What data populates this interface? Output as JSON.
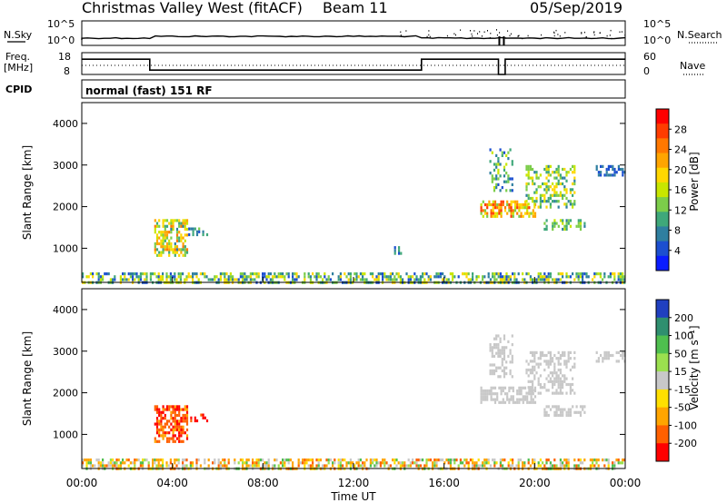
{
  "header": {
    "title": "Christmas Valley West (fitACF)",
    "beam": "Beam 11",
    "date": "05/Sep/2019"
  },
  "noise_panel": {
    "left_label": "N.Sky",
    "left_ticks": [
      "10^5",
      "10^0"
    ],
    "right_label": "N.Search",
    "right_ticks": [
      "10^5",
      "10^0"
    ]
  },
  "freq_panel": {
    "label_line1": "Freq.",
    "label_line2": "[MHz]",
    "left_ticks": [
      "18",
      "8"
    ],
    "right_label": "Nave",
    "right_ticks": [
      "60",
      "0"
    ]
  },
  "cpid": {
    "label": "CPID",
    "value": "normal (fast) 151 RF"
  },
  "power_panel": {
    "ylabel": "Slant Range [km]",
    "yticks": [
      "4000",
      "3000",
      "2000",
      "1000"
    ],
    "colorbar_label": "Power [dB]",
    "colorbar_ticks": [
      "28",
      "24",
      "20",
      "16",
      "12",
      "8",
      "4"
    ],
    "colorbar_colors": [
      "#ff0000",
      "#ff3c00",
      "#ff7800",
      "#ffa500",
      "#ffd700",
      "#c8e600",
      "#7ccd4a",
      "#3fa87a",
      "#2f7fa0",
      "#1c4fd0",
      "#0a1cff"
    ]
  },
  "velocity_panel": {
    "ylabel": "Slant Range [km]",
    "yticks": [
      "4000",
      "3000",
      "2000",
      "1000"
    ],
    "colorbar_label": "Velocity [m s⁻¹]",
    "colorbar_ticks": [
      "200",
      "100",
      "50",
      "15",
      "-15",
      "-50",
      "-100",
      "-200"
    ],
    "colorbar_colors": [
      "#2040c0",
      "#2f8f6f",
      "#4fbf4f",
      "#9be04f",
      "#c8c8c8",
      "#ffe000",
      "#ffa500",
      "#ff6000",
      "#ff0000"
    ]
  },
  "xaxis": {
    "label": "Time UT",
    "ticks": [
      "00:00",
      "04:00",
      "08:00",
      "12:00",
      "16:00",
      "20:00",
      "00:00"
    ]
  },
  "chart_data": {
    "type": "heatmap",
    "title": "Christmas Valley West (fitACF)",
    "xlabel": "Time UT",
    "ylabel": "Slant Range [km]",
    "xlim_hours": [
      0,
      24
    ],
    "ylim_km": [
      180,
      4500
    ],
    "frequency_MHz": [
      {
        "from": 0.0,
        "to": 3.0,
        "value": 15
      },
      {
        "from": 3.0,
        "to": 15.0,
        "value": 10
      },
      {
        "from": 15.0,
        "to": 18.4,
        "value": 15
      },
      {
        "from": 18.4,
        "to": 18.7,
        "value": 8
      },
      {
        "from": 18.7,
        "to": 24.0,
        "value": 15
      }
    ],
    "power_regions": [
      {
        "t0": 0.0,
        "t1": 24.0,
        "r0": 200,
        "r1": 420,
        "dB_min": 4,
        "dB_max": 20,
        "density": 0.55
      },
      {
        "t0": 3.2,
        "t1": 4.7,
        "r0": 850,
        "r1": 1700,
        "dB_min": 8,
        "dB_max": 24,
        "density": 0.6
      },
      {
        "t0": 4.7,
        "t1": 5.5,
        "r0": 1350,
        "r1": 1500,
        "dB_min": 4,
        "dB_max": 12,
        "density": 0.5
      },
      {
        "t0": 13.7,
        "t1": 14.1,
        "r0": 900,
        "r1": 1050,
        "dB_min": 4,
        "dB_max": 12,
        "density": 0.5
      },
      {
        "t0": 17.6,
        "t1": 20.0,
        "r0": 1750,
        "r1": 2150,
        "dB_min": 12,
        "dB_max": 28,
        "density": 0.65
      },
      {
        "t0": 18.0,
        "t1": 19.0,
        "r0": 2400,
        "r1": 3400,
        "dB_min": 4,
        "dB_max": 16,
        "density": 0.35
      },
      {
        "t0": 19.6,
        "t1": 21.8,
        "r0": 2000,
        "r1": 3000,
        "dB_min": 8,
        "dB_max": 20,
        "density": 0.4
      },
      {
        "t0": 20.4,
        "t1": 22.2,
        "r0": 1450,
        "r1": 1700,
        "dB_min": 8,
        "dB_max": 16,
        "density": 0.5
      },
      {
        "t0": 22.7,
        "t1": 24.0,
        "r0": 2750,
        "r1": 3000,
        "dB_min": 4,
        "dB_max": 8,
        "density": 0.5
      }
    ],
    "velocity_regions": [
      {
        "t0": 0.0,
        "t1": 24.0,
        "r0": 200,
        "r1": 420,
        "v_min": -100,
        "v_max": 50,
        "density": 0.55
      },
      {
        "t0": 3.2,
        "t1": 4.7,
        "r0": 850,
        "r1": 1700,
        "v_min": -200,
        "v_max": -50,
        "density": 0.6
      },
      {
        "t0": 4.7,
        "t1": 5.5,
        "r0": 1350,
        "r1": 1500,
        "v_min": -200,
        "v_max": -100,
        "density": 0.5
      },
      {
        "t0": 17.6,
        "t1": 20.0,
        "r0": 1750,
        "r1": 2150,
        "v_min": -15,
        "v_max": 15,
        "density": 0.65
      },
      {
        "t0": 18.0,
        "t1": 19.0,
        "r0": 2400,
        "r1": 3400,
        "v_min": -15,
        "v_max": 15,
        "density": 0.35
      },
      {
        "t0": 19.6,
        "t1": 21.8,
        "r0": 2000,
        "r1": 3000,
        "v_min": -15,
        "v_max": 15,
        "density": 0.4
      },
      {
        "t0": 20.4,
        "t1": 22.2,
        "r0": 1450,
        "r1": 1700,
        "v_min": -15,
        "v_max": 15,
        "density": 0.5
      },
      {
        "t0": 22.7,
        "t1": 24.0,
        "r0": 2750,
        "r1": 3000,
        "v_min": -15,
        "v_max": 15,
        "density": 0.5
      }
    ]
  }
}
